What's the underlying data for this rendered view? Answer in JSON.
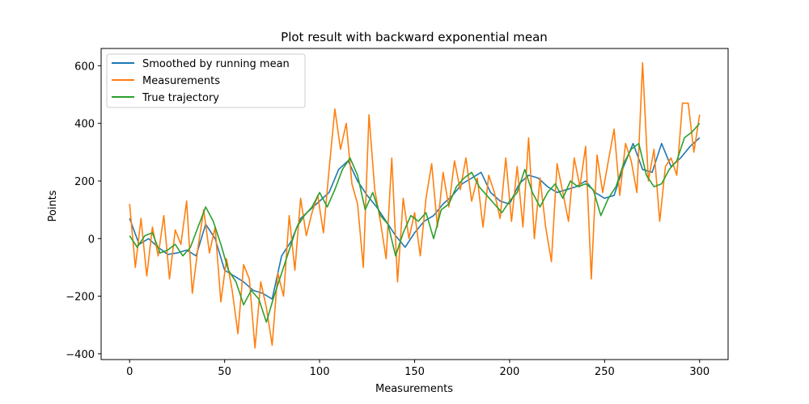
{
  "chart_data": {
    "type": "line",
    "title": "Plot result with backward exponential mean",
    "xlabel": "Measurements",
    "ylabel": "Points",
    "xlim": [
      -15,
      315
    ],
    "ylim": [
      -420,
      660
    ],
    "xticks": [
      0,
      50,
      100,
      150,
      200,
      250,
      300
    ],
    "yticks": [
      -400,
      -200,
      0,
      200,
      400,
      600
    ],
    "xtick_labels": [
      "0",
      "50",
      "100",
      "150",
      "200",
      "250",
      "300"
    ],
    "ytick_labels": [
      "−400",
      "−200",
      "0",
      "200",
      "400",
      "600"
    ],
    "legend_position": "top-left",
    "grid": false,
    "series": [
      {
        "name": "Smoothed by running mean",
        "color": "#1f77b4",
        "x": [
          0,
          5,
          10,
          15,
          20,
          25,
          30,
          35,
          40,
          45,
          50,
          55,
          60,
          65,
          70,
          75,
          80,
          85,
          90,
          95,
          100,
          105,
          110,
          115,
          120,
          125,
          130,
          135,
          140,
          145,
          150,
          155,
          160,
          165,
          170,
          175,
          180,
          185,
          190,
          195,
          200,
          205,
          210,
          215,
          220,
          225,
          230,
          235,
          240,
          245,
          250,
          255,
          260,
          265,
          270,
          275,
          280,
          285,
          290,
          295,
          300
        ],
        "values": [
          70,
          -20,
          0,
          -30,
          -55,
          -50,
          -40,
          -60,
          50,
          0,
          -110,
          -130,
          -150,
          -180,
          -190,
          -210,
          -60,
          -10,
          70,
          100,
          130,
          160,
          240,
          270,
          200,
          150,
          110,
          60,
          10,
          -30,
          20,
          60,
          80,
          120,
          150,
          190,
          210,
          230,
          160,
          130,
          120,
          190,
          220,
          210,
          180,
          160,
          170,
          180,
          200,
          160,
          140,
          150,
          250,
          330,
          240,
          230,
          330,
          250,
          280,
          320,
          350
        ]
      },
      {
        "name": "Measurements",
        "color": "#ff7f0e",
        "x": [
          0,
          3,
          6,
          9,
          12,
          15,
          18,
          21,
          24,
          27,
          30,
          33,
          36,
          39,
          42,
          45,
          48,
          51,
          54,
          57,
          60,
          63,
          66,
          69,
          72,
          75,
          78,
          81,
          84,
          87,
          90,
          93,
          96,
          99,
          102,
          105,
          108,
          111,
          114,
          117,
          120,
          123,
          126,
          129,
          132,
          135,
          138,
          141,
          144,
          147,
          150,
          153,
          156,
          159,
          162,
          165,
          168,
          171,
          174,
          177,
          180,
          183,
          186,
          189,
          192,
          195,
          198,
          201,
          204,
          207,
          210,
          213,
          216,
          219,
          222,
          225,
          228,
          231,
          234,
          237,
          240,
          243,
          246,
          249,
          252,
          255,
          258,
          261,
          264,
          267,
          270,
          273,
          276,
          279,
          282,
          285,
          288,
          291,
          294,
          297,
          300
        ],
        "values": [
          120,
          -100,
          70,
          -130,
          40,
          -60,
          80,
          -140,
          30,
          -20,
          130,
          -190,
          -30,
          100,
          -50,
          40,
          -220,
          -70,
          -180,
          -330,
          -90,
          -140,
          -380,
          -150,
          -240,
          -370,
          -120,
          -200,
          80,
          -110,
          140,
          10,
          90,
          150,
          20,
          240,
          450,
          310,
          400,
          190,
          120,
          -100,
          430,
          170,
          60,
          -70,
          280,
          -150,
          140,
          0,
          90,
          -60,
          140,
          260,
          40,
          230,
          110,
          270,
          170,
          280,
          130,
          210,
          40,
          220,
          160,
          70,
          280,
          60,
          250,
          40,
          350,
          0,
          210,
          40,
          -80,
          260,
          160,
          60,
          280,
          180,
          320,
          -140,
          290,
          160,
          270,
          380,
          150,
          330,
          270,
          160,
          610,
          200,
          310,
          60,
          250,
          280,
          220,
          470,
          470,
          300,
          430
        ]
      },
      {
        "name": "True trajectory",
        "color": "#2ca02c",
        "x": [
          0,
          4,
          8,
          12,
          16,
          20,
          24,
          28,
          32,
          36,
          40,
          44,
          48,
          52,
          56,
          60,
          64,
          68,
          72,
          76,
          80,
          84,
          88,
          92,
          96,
          100,
          104,
          108,
          112,
          116,
          120,
          124,
          128,
          132,
          136,
          140,
          144,
          148,
          152,
          156,
          160,
          164,
          168,
          172,
          176,
          180,
          184,
          188,
          192,
          196,
          200,
          204,
          208,
          212,
          216,
          220,
          224,
          228,
          232,
          236,
          240,
          244,
          248,
          252,
          256,
          260,
          264,
          268,
          272,
          276,
          280,
          284,
          288,
          292,
          296,
          300
        ],
        "values": [
          10,
          -30,
          10,
          20,
          -50,
          -40,
          -20,
          -60,
          -30,
          40,
          110,
          60,
          -20,
          -110,
          -150,
          -230,
          -180,
          -210,
          -290,
          -200,
          -120,
          -40,
          40,
          80,
          110,
          160,
          110,
          170,
          240,
          280,
          220,
          100,
          160,
          80,
          50,
          -60,
          20,
          80,
          60,
          90,
          0,
          100,
          120,
          180,
          210,
          230,
          180,
          150,
          120,
          90,
          130,
          160,
          240,
          160,
          110,
          160,
          190,
          140,
          200,
          180,
          190,
          170,
          80,
          140,
          180,
          260,
          310,
          330,
          220,
          180,
          190,
          240,
          270,
          350,
          370,
          400
        ]
      }
    ]
  }
}
